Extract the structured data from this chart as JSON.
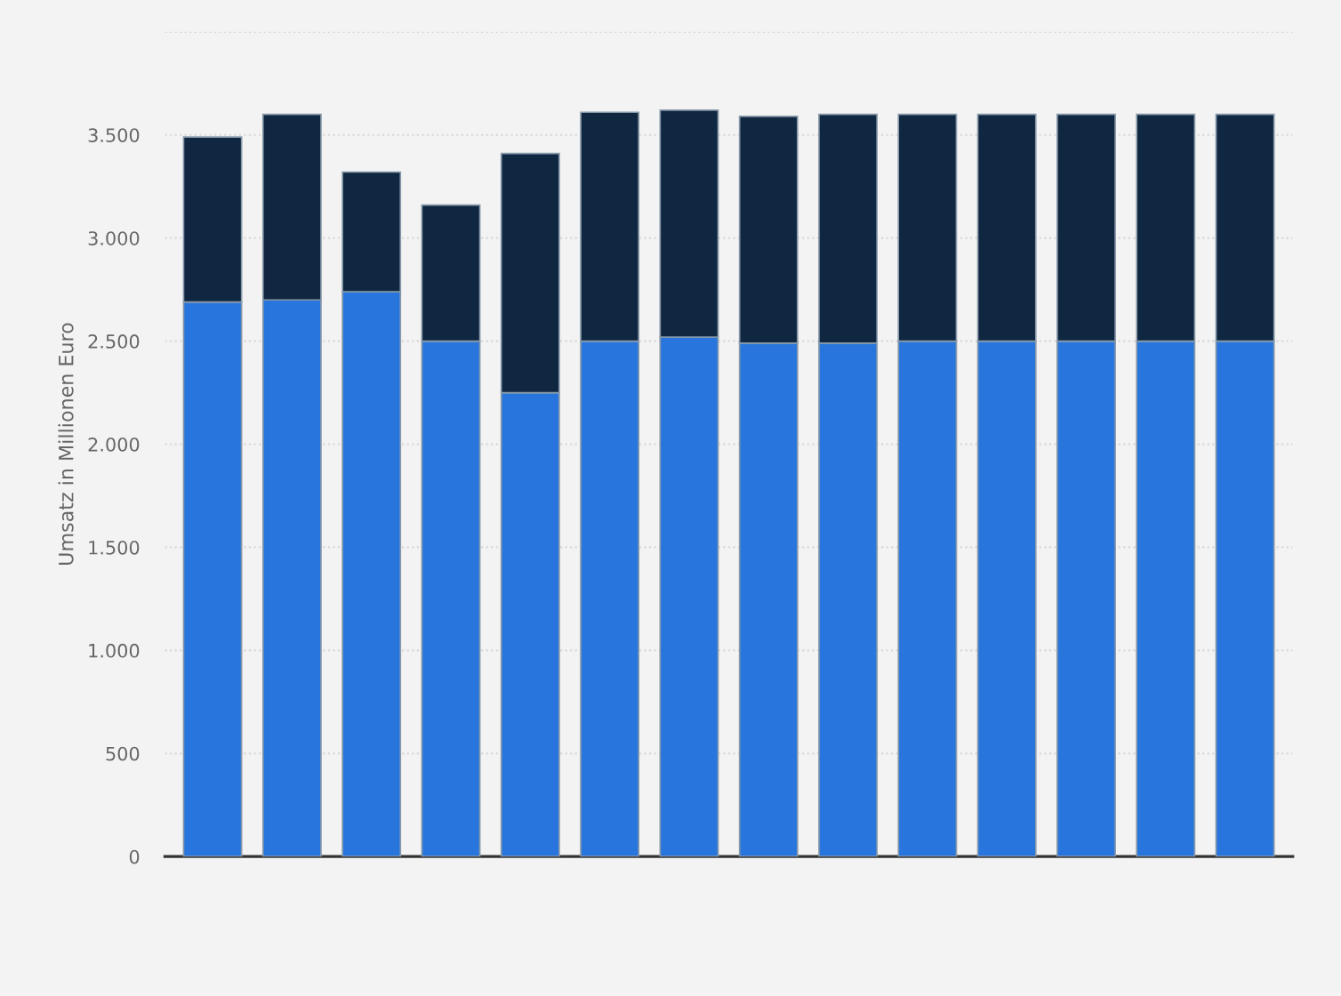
{
  "chart_data": {
    "type": "bar",
    "stacked": true,
    "ylabel": "Umsatz in Millionen Euro",
    "categories": [
      null,
      null,
      null,
      null,
      null,
      null,
      null,
      null,
      null,
      null,
      null,
      null,
      null,
      null
    ],
    "series": [
      {
        "color": "#2876dd",
        "values": [
          2690,
          2700,
          2740,
          2500,
          2250,
          2500,
          2520,
          2490,
          2490,
          2500,
          2500,
          2500,
          2500,
          2500
        ]
      },
      {
        "color": "#0f2740",
        "values": [
          800,
          900,
          580,
          660,
          1160,
          1110,
          1100,
          1100,
          1110,
          1100,
          1100,
          1100,
          1100,
          1100
        ]
      }
    ],
    "ylim": [
      0,
      4000
    ],
    "yticks": [
      0,
      {
        "value": 500,
        "label": "500"
      },
      {
        "value": 1000,
        "label": "1.000"
      },
      {
        "value": 1500,
        "label": "1.500"
      },
      {
        "value": 2000,
        "label": "2.000"
      },
      {
        "value": 2500,
        "label": "2.500"
      },
      {
        "value": 3000,
        "label": "3.000"
      },
      {
        "value": 3500,
        "label": "3.500"
      },
      {
        "value": 4000,
        "label": null
      }
    ],
    "grid": "y"
  }
}
